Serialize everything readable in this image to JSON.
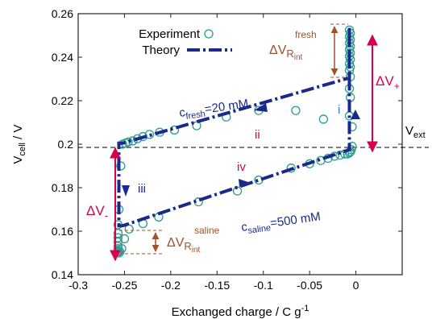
{
  "chart_data": {
    "type": "line",
    "xlabel_text": "Exchanged charge / C g",
    "xlabel_sup": "-1",
    "ylabel_text": "V",
    "ylabel_sub": "cell",
    "ylabel_unit": " / V",
    "xlim": [
      -0.3,
      0.05
    ],
    "ylim": [
      0.14,
      0.26
    ],
    "xticks": [
      -0.3,
      -0.25,
      -0.2,
      -0.15,
      -0.1,
      -0.05,
      0
    ],
    "xtick_labels": [
      "-0.3",
      "-0.25",
      "-0.2",
      "-0.15",
      "-0.1",
      "-0.05",
      "0"
    ],
    "yticks": [
      0.14,
      0.16,
      0.18,
      0.2,
      0.22,
      0.24,
      0.26
    ],
    "ytick_labels": [
      "0.14",
      "0.16",
      "0.18",
      "0.2",
      "0.22",
      "0.24",
      "0.26"
    ],
    "grid": false,
    "legend": {
      "placement": "top-left",
      "experiment_label": "Experiment",
      "theory_label": "Theory"
    },
    "colors": {
      "theory": "#1a2a8a",
      "experiment": "#2a9d8f",
      "delta_v": "#d6004c",
      "r_int": "#a0522d",
      "blue_label": "#3a7bd5",
      "red_label": "#d6004c",
      "dark_label": "#1a2a8a"
    },
    "v_ext": {
      "y": 0.1985,
      "label_main": "V",
      "label_sub": "ext"
    },
    "theory_series": {
      "name": "Theory",
      "x": [
        -0.007,
        -0.007,
        -0.252,
        -0.256,
        -0.256,
        -0.252,
        -0.007,
        -0.007
      ],
      "y": [
        0.2535,
        0.2305,
        0.2005,
        0.2005,
        0.1625,
        0.1625,
        0.1975,
        0.2535
      ]
    },
    "experiment_series": {
      "name": "Experiment",
      "x": [
        -0.007,
        -0.006,
        -0.007,
        -0.006,
        -0.007,
        -0.006,
        -0.007,
        -0.006,
        -0.007,
        -0.006,
        -0.007,
        -0.006,
        -0.007,
        -0.006,
        -0.007,
        -0.006,
        -0.007,
        -0.004,
        -0.035,
        -0.065,
        -0.105,
        -0.14,
        -0.172,
        -0.196,
        -0.212,
        -0.223,
        -0.23,
        -0.236,
        -0.241,
        -0.246,
        -0.249,
        -0.252,
        -0.254,
        -0.256,
        -0.257,
        -0.257,
        -0.257,
        -0.257,
        -0.257,
        -0.257,
        -0.257,
        -0.257,
        -0.256,
        -0.255,
        -0.253,
        -0.25,
        -0.245,
        -0.23,
        -0.213,
        -0.17,
        -0.128,
        -0.105,
        -0.07,
        -0.05,
        -0.038,
        -0.03,
        -0.023,
        -0.017,
        -0.012,
        -0.009,
        -0.007,
        -0.006,
        -0.005,
        -0.004
      ],
      "y": [
        0.2525,
        0.251,
        0.2495,
        0.248,
        0.2465,
        0.245,
        0.2435,
        0.242,
        0.2405,
        0.239,
        0.237,
        0.2355,
        0.234,
        0.231,
        0.2255,
        0.2215,
        0.213,
        0.208,
        0.2115,
        0.2155,
        0.2155,
        0.2125,
        0.2085,
        0.2065,
        0.2055,
        0.2045,
        0.2035,
        0.2025,
        0.2015,
        0.201,
        0.2005,
        0.2,
        0.19,
        0.17,
        0.163,
        0.159,
        0.157,
        0.155,
        0.153,
        0.152,
        0.151,
        0.1505,
        0.15,
        0.1505,
        0.152,
        0.1565,
        0.161,
        0.1635,
        0.1665,
        0.1735,
        0.1785,
        0.1835,
        0.189,
        0.191,
        0.1925,
        0.1935,
        0.1945,
        0.195,
        0.1955,
        0.1955,
        0.196,
        0.1965,
        0.1975,
        0.199
      ]
    },
    "annotations": {
      "c_fresh_main": "c",
      "c_fresh_sub": "fresh",
      "c_fresh_value": "=20 mM",
      "c_saline_main": "c",
      "c_saline_sub": "saline",
      "c_saline_value": "=500 mM",
      "segment_i": "i",
      "segment_ii": "ii",
      "segment_iii": "iii",
      "segment_iv": "iv",
      "dv_plus_main": "ΔV",
      "dv_plus_sub": "+",
      "dv_minus_main": "ΔV",
      "dv_minus_sub": "-",
      "rint_fresh_main": "ΔV",
      "rint_fresh_sub": "R",
      "rint_fresh_subsub": "int",
      "rint_fresh_sup": "fresh",
      "rint_saline_main": "ΔV",
      "rint_saline_sub": "R",
      "rint_saline_subsub": "int",
      "rint_saline_sup": "saline"
    }
  }
}
